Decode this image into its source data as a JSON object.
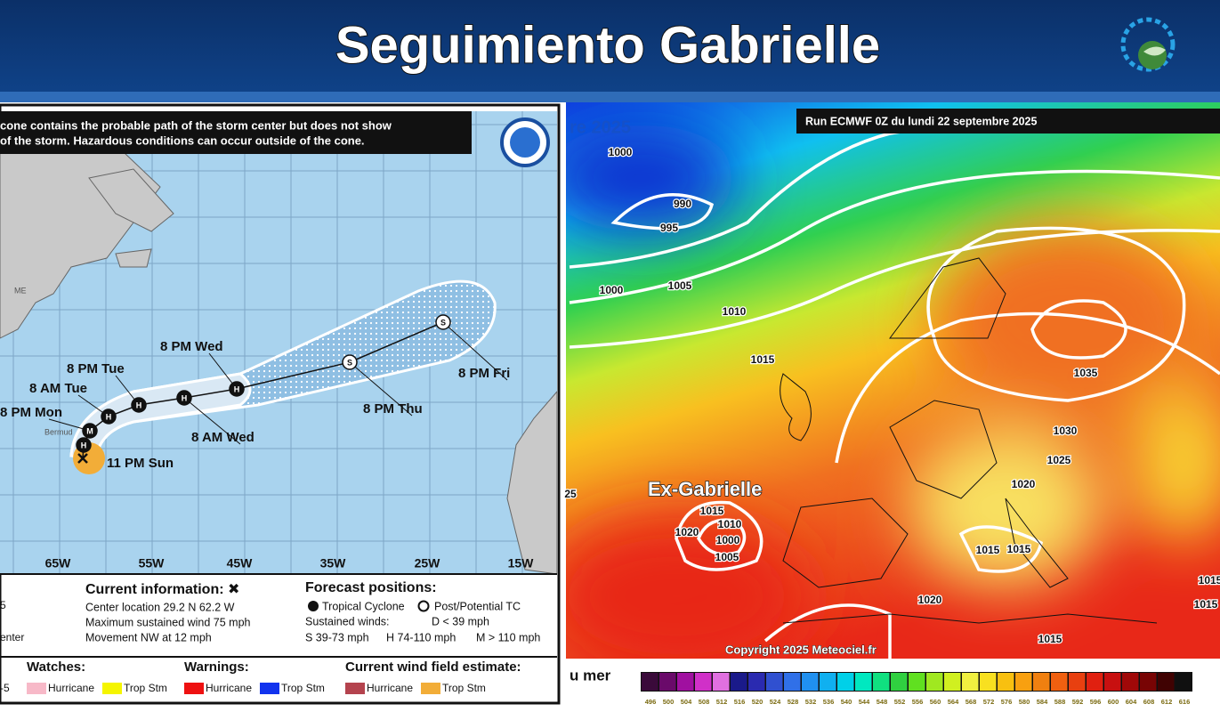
{
  "header": {
    "title": "Seguimiento Gabrielle"
  },
  "nhc": {
    "cone_note": [
      "cone contains the probable path of the storm center but does not show",
      "of the storm. Hazardous conditions can occur outside of the cone."
    ],
    "longitudes": [
      "65W",
      "55W",
      "45W",
      "35W",
      "25W",
      "15W"
    ],
    "places": [
      "ME",
      "Bermud"
    ],
    "points": [
      {
        "letter": "H",
        "label": null
      },
      {
        "letter": "M",
        "label": "8 PM Mon"
      },
      {
        "letter": "H",
        "label": "8 AM Tue"
      },
      {
        "letter": "H",
        "label": "8 PM Tue"
      },
      {
        "letter": "H",
        "label": "8 AM Wed"
      },
      {
        "letter": "H",
        "label": "8 PM Wed"
      },
      {
        "letter": "S",
        "label": "8 PM Thu"
      },
      {
        "letter": "S",
        "label": "8 PM Fri"
      }
    ],
    "current_label": "11 PM Sun",
    "fragments": [
      "5",
      "enter",
      "-5"
    ],
    "current_info": {
      "title": "Current information: ✖",
      "lines": [
        "Center location 29.2 N 62.2 W",
        "Maximum sustained wind 75 mph",
        "Movement NW at 12 mph"
      ]
    },
    "forecast": {
      "title": "Forecast positions:",
      "tropical": "Tropical Cyclone",
      "post": "Post/Potential TC",
      "winds": "Sustained winds:",
      "d": "D < 39 mph",
      "s": "S 39-73 mph",
      "h": "H 74-110 mph",
      "m": "M > 110 mph"
    },
    "legend": [
      {
        "title": "Watches:",
        "items": [
          {
            "label": "Hurricane",
            "color": "#f7b9c8"
          },
          {
            "label": "Trop Stm",
            "color": "#f5f500"
          }
        ]
      },
      {
        "title": "Warnings:",
        "items": [
          {
            "label": "Hurricane",
            "color": "#ee1111"
          },
          {
            "label": "Trop Stm",
            "color": "#1133ee"
          }
        ]
      },
      {
        "title": "Current wind field estimate:",
        "items": [
          {
            "label": "Hurricane",
            "color": "#b4434e"
          },
          {
            "label": "Trop Stm",
            "color": "#f2ad38"
          }
        ]
      }
    ]
  },
  "ecmwf": {
    "corner": "re 2025",
    "run": "Run ECMWF 0Z du lundi 22 septembre 2025",
    "storm": "Ex-Gabrielle",
    "copyright": "Copyright 2025 Meteociel.fr",
    "caption": "u mer",
    "isobars": [
      "1000",
      "990",
      "995",
      "1000",
      "1005",
      "1010",
      "1015",
      "1035",
      "1030",
      "1025",
      "1020",
      "1015",
      "1010",
      "1000",
      "1005",
      "1020",
      "1015",
      "1015",
      "1020",
      "1015",
      "1015",
      "25",
      "1015"
    ],
    "colorbar": {
      "ticks": [
        496,
        500,
        504,
        508,
        512,
        516,
        520,
        524,
        528,
        532,
        536,
        540,
        544,
        548,
        552,
        556,
        560,
        564,
        568,
        572,
        576,
        580,
        584,
        588,
        592,
        596,
        600,
        604,
        608,
        612,
        616
      ],
      "colors": [
        "#3a0a3a",
        "#6a0a6a",
        "#a010a0",
        "#d030c8",
        "#e070e0",
        "#1a1a8a",
        "#2a2ab0",
        "#3050d0",
        "#3070e8",
        "#2090f0",
        "#10b0f0",
        "#00d0e8",
        "#00e8c0",
        "#10e080",
        "#30d040",
        "#60e020",
        "#a0e820",
        "#d0f020",
        "#f0f040",
        "#f8e020",
        "#f8c010",
        "#f8a010",
        "#f08010",
        "#f06010",
        "#e84010",
        "#e02010",
        "#c81010",
        "#a00808",
        "#780404",
        "#400202",
        "#101010"
      ]
    }
  }
}
